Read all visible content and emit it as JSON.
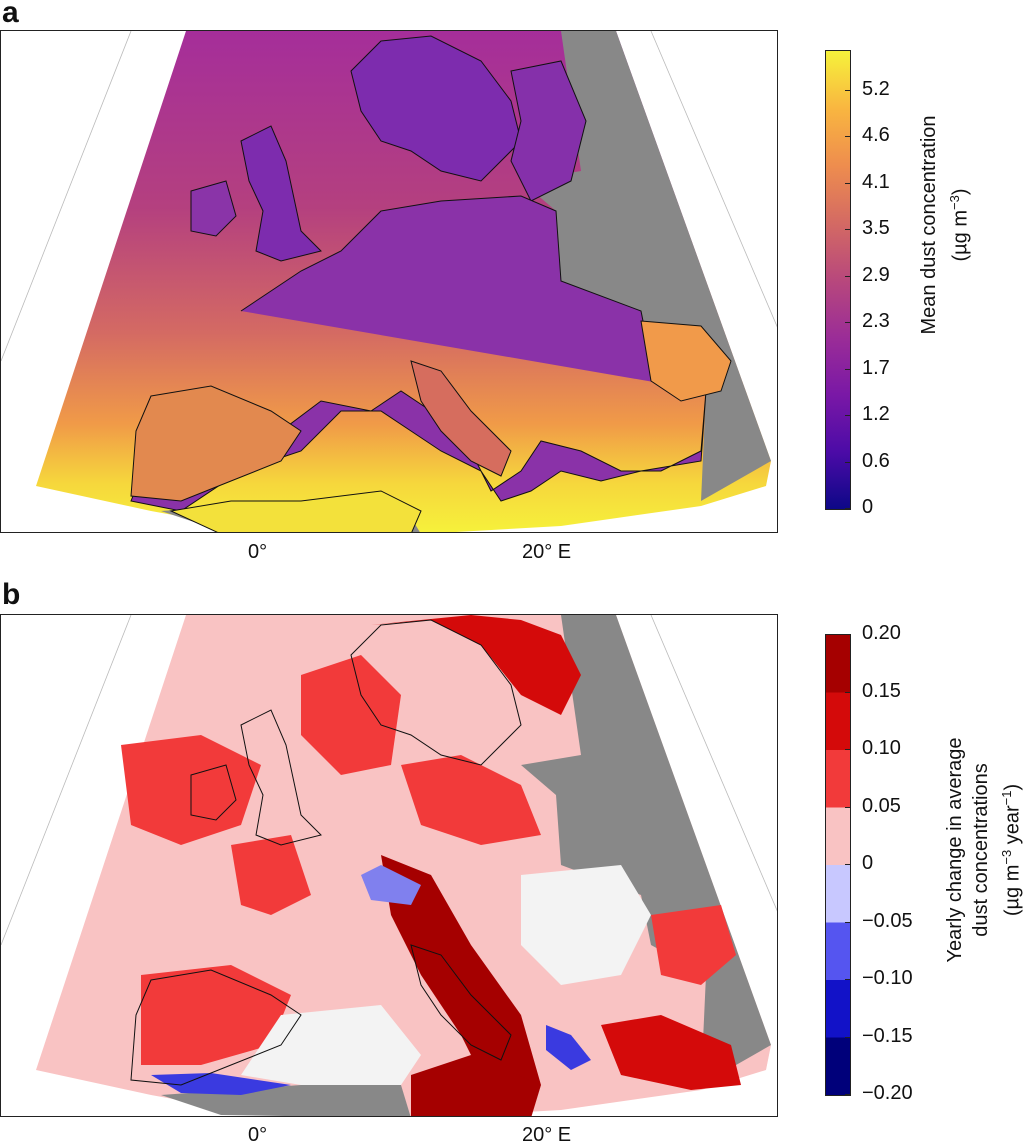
{
  "panels": [
    {
      "letter": "a",
      "lon_labels": [
        "0°",
        "20° E"
      ],
      "colorbar": {
        "type": "continuous",
        "title_line1": "Mean dust concentration",
        "title_line2": "(µg m",
        "title_sup2": "−3",
        "title_tail2": ")",
        "ticks": [
          "5.2",
          "4.6",
          "4.1",
          "3.5",
          "2.9",
          "2.3",
          "1.7",
          "1.2",
          "0.6",
          "0"
        ],
        "colors": [
          "#f6f23b",
          "#f9b640",
          "#ee8d4e",
          "#d46a63",
          "#b8487c",
          "#9b2d97",
          "#7a18a6",
          "#4c0ba7",
          "#0d0887"
        ]
      }
    },
    {
      "letter": "b",
      "lon_labels": [
        "0°",
        "20° E"
      ],
      "colorbar": {
        "type": "discrete",
        "title_line1": "Yearly change in average",
        "title_line2": "dust concentrations",
        "title_line3a": "(µg m",
        "title_sup3a": "−3",
        "title_line3b": " year",
        "title_sup3b": "−1",
        "title_tail3": ")",
        "ticks": [
          "0.20",
          "0.15",
          "0.10",
          "0.05",
          "0",
          "−0.05",
          "−0.10",
          "−0.15",
          "−0.20"
        ],
        "colors": [
          "#a50000",
          "#d40a0a",
          "#f23a3a",
          "#f9c3c3",
          "#c8c8ff",
          "#5555f0",
          "#1212c8",
          "#00007a"
        ]
      }
    }
  ],
  "legend_colors": {
    "land_outside": "#888888",
    "coastline": "#111111"
  }
}
